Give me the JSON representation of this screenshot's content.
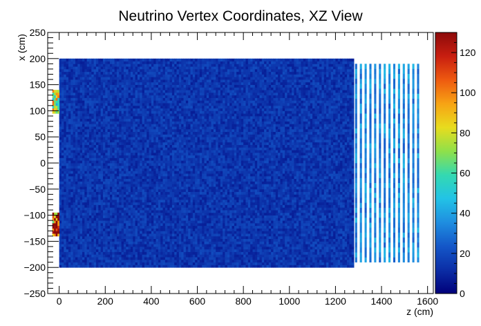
{
  "chart_data": {
    "type": "heatmap",
    "title": "Neutrino Vertex Coordinates, XZ View",
    "xlabel": "z (cm)",
    "ylabel": "x (cm)",
    "xlim": [
      -50,
      1625
    ],
    "ylim": [
      -250,
      250
    ],
    "zlim": [
      0,
      130
    ],
    "x_ticks": [
      0,
      200,
      400,
      600,
      800,
      1000,
      1200,
      1400,
      1600
    ],
    "y_ticks": [
      -250,
      -200,
      -150,
      -100,
      -50,
      0,
      50,
      100,
      150,
      200,
      250
    ],
    "z_ticks": [
      0,
      20,
      40,
      60,
      80,
      100,
      120
    ],
    "colormap": [
      "#00007a",
      "#0b2ea6",
      "#1457c8",
      "#1f8ee0",
      "#22c3e6",
      "#34d9b0",
      "#8fe04a",
      "#e8dc1e",
      "#f7a314",
      "#ee5a10",
      "#c81e10",
      "#8c0a0a"
    ],
    "regions": [
      {
        "name": "main-volume",
        "z": [
          0,
          1280
        ],
        "x": [
          -200,
          200
        ],
        "count": 14
      },
      {
        "name": "upstream-upper",
        "z": [
          -30,
          0
        ],
        "x": [
          95,
          140
        ],
        "count": 75
      },
      {
        "name": "upstream-lower",
        "z": [
          -30,
          0
        ],
        "x": [
          -140,
          -95
        ],
        "count": 115
      },
      {
        "name": "downstream-planes",
        "z": [
          1285,
          1575
        ],
        "x": [
          -190,
          190
        ],
        "count": 35,
        "planes": 14
      }
    ]
  }
}
